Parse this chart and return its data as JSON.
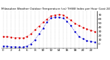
{
  "title": "Milwaukee Weather Outdoor Temperature (vs) THSW Index per Hour (Last 24 Hours)",
  "bg_color": "#ffffff",
  "plot_bg_color": "#ffffff",
  "grid_color": "#c8c8c8",
  "red_color": "#dd0000",
  "blue_color": "#0000cc",
  "hours": [
    0,
    1,
    2,
    3,
    4,
    5,
    6,
    7,
    8,
    9,
    10,
    11,
    12,
    13,
    14,
    15,
    16,
    17,
    18,
    19,
    20,
    21,
    22,
    23
  ],
  "temp": [
    18,
    17,
    16,
    15,
    15,
    14,
    18,
    24,
    34,
    43,
    52,
    60,
    67,
    70,
    71,
    70,
    64,
    57,
    50,
    44,
    40,
    36,
    33,
    30
  ],
  "thsw": [
    -5,
    -6,
    -7,
    -7,
    -8,
    -8,
    -5,
    0,
    10,
    24,
    38,
    53,
    62,
    65,
    64,
    62,
    55,
    44,
    30,
    18,
    12,
    8,
    6,
    4
  ],
  "ylim": [
    -10,
    80
  ],
  "ytick_vals": [
    0,
    10,
    20,
    30,
    40,
    50,
    60,
    70
  ],
  "ytick_labels": [
    "0",
    "10",
    "20",
    "30",
    "40",
    "50",
    "60",
    "70"
  ],
  "title_fontsize": 3.0,
  "tick_fontsize": 3.2,
  "marker_size": 1.8
}
